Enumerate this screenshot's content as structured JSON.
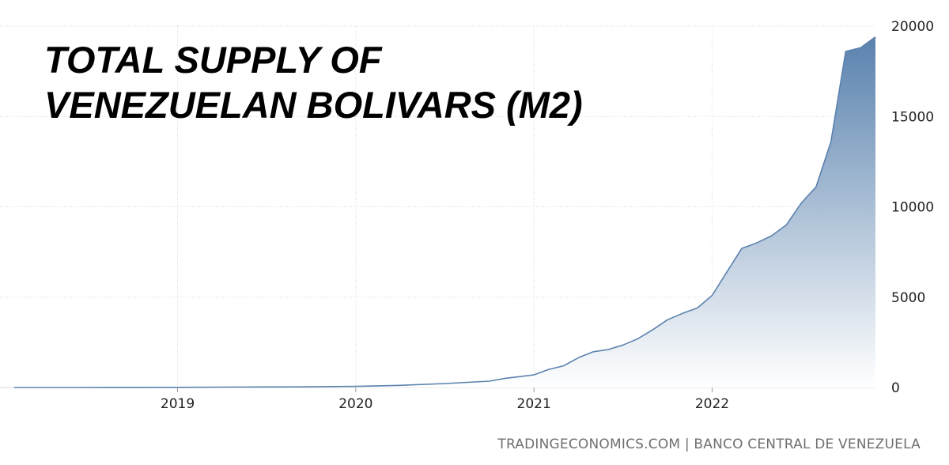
{
  "chart_data": {
    "type": "area",
    "title_lines": [
      "TOTAL SUPPLY OF",
      "VENEZUELAN BOLIVARS (M2)"
    ],
    "xlabel": "",
    "ylabel": "",
    "x_ticks": [
      "2019",
      "2020",
      "2021",
      "2022"
    ],
    "y_ticks": [
      0,
      5000,
      10000,
      15000,
      20000
    ],
    "ylim": [
      0,
      20000
    ],
    "xlim": [
      "2018-02",
      "2022-12"
    ],
    "grid": true,
    "legend": "none",
    "series": [
      {
        "x": [
          "2018-02",
          "2018-06",
          "2018-10",
          "2019-01",
          "2019-04",
          "2019-07",
          "2019-10",
          "2020-01",
          "2020-04",
          "2020-07",
          "2020-10",
          "2020-11",
          "2020-12",
          "2021-01",
          "2021-02",
          "2021-03",
          "2021-04",
          "2021-05",
          "2021-06",
          "2021-07",
          "2021-08",
          "2021-09",
          "2021-10",
          "2021-11",
          "2021-12",
          "2022-01",
          "2022-02",
          "2022-03",
          "2022-04",
          "2022-05",
          "2022-06",
          "2022-07",
          "2022-08",
          "2022-09",
          "2022-10",
          "2022-11",
          "2022-12"
        ],
        "values": [
          0,
          2,
          5,
          10,
          20,
          30,
          40,
          60,
          120,
          220,
          350,
          500,
          600,
          700,
          1000,
          1200,
          1650,
          1980,
          2100,
          2350,
          2700,
          3200,
          3750,
          4100,
          4400,
          5100,
          6400,
          7700,
          8000,
          8400,
          9000,
          10200,
          11100,
          13600,
          18600,
          18800,
          19400
        ]
      }
    ],
    "colors": {
      "line": "#5b82ad",
      "fill_top": "#5a82ae",
      "fill_bottom": "#ffffff",
      "grid": "#d9d9d9"
    }
  },
  "footer": "TRADINGECONOMICS.COM  |  BANCO CENTRAL DE VENEZUELA"
}
